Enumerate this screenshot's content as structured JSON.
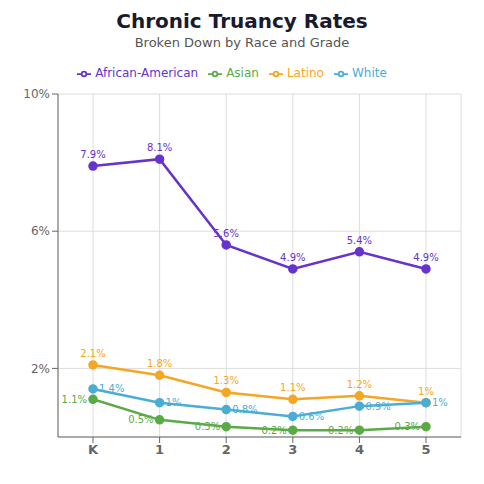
{
  "chart_data": {
    "type": "line",
    "title": "Chronic Truancy Rates",
    "subtitle": "Broken Down by Race and Grade",
    "categories": [
      "K",
      "1",
      "2",
      "3",
      "4",
      "5"
    ],
    "series": [
      {
        "name": "African-American",
        "color": "#6633cc",
        "values": [
          7.9,
          8.1,
          5.6,
          4.9,
          5.4,
          4.9
        ],
        "value_labels": [
          "7.9%",
          "8.1%",
          "5.6%",
          "4.9%",
          "5.4%",
          "4.9%"
        ]
      },
      {
        "name": "Latino",
        "color": "#f5a623",
        "values": [
          2.1,
          1.8,
          1.3,
          1.1,
          1.2,
          1.0
        ],
        "value_labels": [
          "2.1%",
          "1.8%",
          "1.3%",
          "1.1%",
          "1.2%",
          "1%"
        ]
      },
      {
        "name": "White",
        "color": "#4aadd6",
        "values": [
          1.4,
          1.0,
          0.8,
          0.6,
          0.9,
          1.0
        ],
        "value_labels": [
          "1.4%",
          "1%",
          "0.8%",
          "0.6%",
          "0.9%",
          "1%"
        ]
      },
      {
        "name": "Asian",
        "color": "#5aaa46",
        "values": [
          1.1,
          0.5,
          0.3,
          0.2,
          0.2,
          0.3
        ],
        "value_labels": [
          "1.1%",
          "0.5%",
          "0.3%",
          "0.2%",
          "0.2%",
          "0.3%"
        ]
      }
    ],
    "ylim": [
      0,
      10
    ],
    "yticks": [
      {
        "value": 2,
        "label": "2%"
      },
      {
        "value": 6,
        "label": "6%"
      },
      {
        "value": 10,
        "label": "10%"
      }
    ],
    "grid": true,
    "data_labels": true,
    "marker": "circle"
  }
}
